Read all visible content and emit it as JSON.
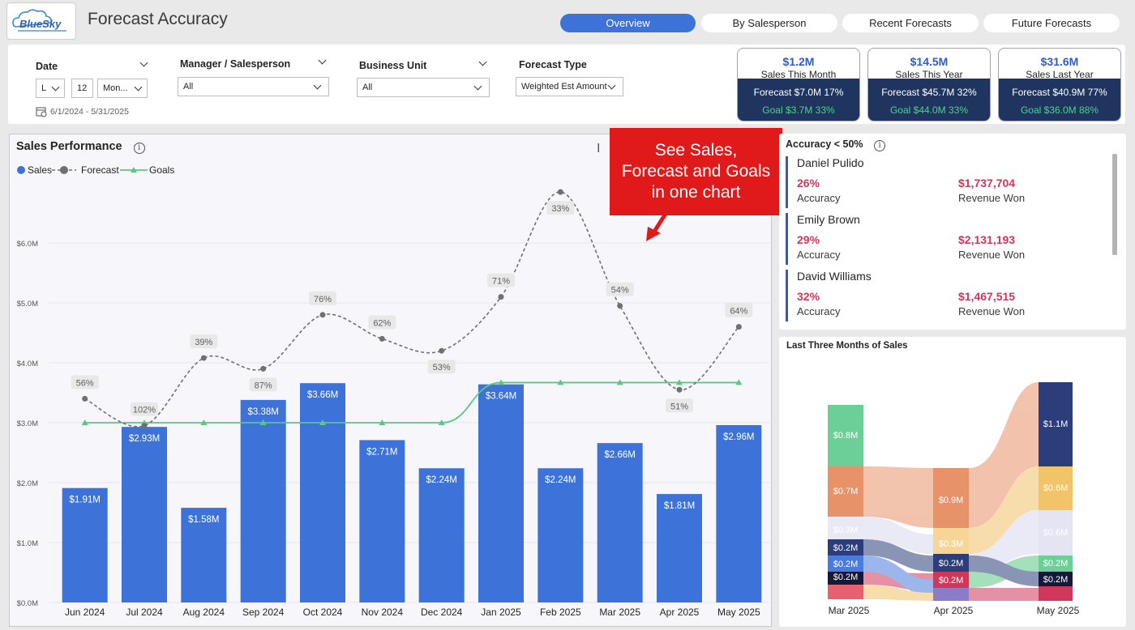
{
  "header": {
    "logo_text": "BlueSky",
    "title": "Forecast Accuracy",
    "tabs": [
      {
        "label": "Overview",
        "active": true
      },
      {
        "label": "By Salesperson",
        "active": false
      },
      {
        "label": "Recent Forecasts",
        "active": false
      },
      {
        "label": "Future Forecasts",
        "active": false
      }
    ]
  },
  "filters": {
    "date": {
      "label": "Date",
      "unit": "L",
      "count": "12",
      "period": "Mon...",
      "range": "6/1/2024 - 5/31/2025"
    },
    "manager": {
      "label": "Manager / Salesperson",
      "value": "All"
    },
    "business_unit": {
      "label": "Business Unit",
      "value": "All"
    },
    "forecast_type": {
      "label": "Forecast Type",
      "value": "Weighted Est Amount"
    }
  },
  "kpis": [
    {
      "value": "$1.2M",
      "label": "Sales This Month",
      "forecast": "Forecast $7.0M 17%",
      "goal": "Goal $3.7M 33%"
    },
    {
      "value": "$14.5M",
      "label": "Sales This Year",
      "forecast": "Forecast $45.7M 32%",
      "goal": "Goal $44.0M 33%"
    },
    {
      "value": "$31.6M",
      "label": "Sales Last Year",
      "forecast": "Forecast $40.9M 77%",
      "goal": "Goal $36.0M 88%"
    }
  ],
  "callout": {
    "line1": "See Sales,",
    "line2": "Forecast and Goals",
    "line3": "in one chart"
  },
  "chart_data": {
    "type": "bar",
    "title": "Sales Performance",
    "legend": [
      "Sales",
      "Forecast",
      "Goals"
    ],
    "categories": [
      "Jun 2024",
      "Jul 2024",
      "Aug 2024",
      "Sep 2024",
      "Oct 2024",
      "Nov 2024",
      "Dec 2024",
      "Jan 2025",
      "Feb 2025",
      "Mar 2025",
      "Apr 2025",
      "May 2025"
    ],
    "sales": [
      1.91,
      2.93,
      1.58,
      3.38,
      3.66,
      2.71,
      2.24,
      3.64,
      2.24,
      2.66,
      1.81,
      2.96
    ],
    "sales_labels": [
      "$1.91M",
      "$2.93M",
      "$1.58M",
      "$3.38M",
      "$3.66M",
      "$2.71M",
      "$2.24M",
      "$3.64M",
      "$2.24M",
      "$2.66M",
      "$1.81M",
      "$2.96M"
    ],
    "forecast": [
      3.4,
      2.95,
      4.08,
      3.9,
      4.8,
      4.4,
      4.2,
      5.1,
      6.85,
      4.95,
      3.55,
      4.6
    ],
    "accuracy_labels": [
      "56%",
      "102%",
      "39%",
      "87%",
      "76%",
      "62%",
      "53%",
      "71%",
      "33%",
      "54%",
      "51%",
      "64%"
    ],
    "goals": [
      3.0,
      3.0,
      3.0,
      3.0,
      3.0,
      3.0,
      3.0,
      3.67,
      3.67,
      3.67,
      3.67,
      3.67
    ],
    "ylim": [
      0,
      7
    ],
    "yticks": [
      "$0.0M",
      "$1.0M",
      "$2.0M",
      "$3.0M",
      "$4.0M",
      "$5.0M",
      "$6.0M"
    ],
    "colors": {
      "sales": "#3d73d9",
      "forecast": "#707070",
      "goals": "#5ac787"
    }
  },
  "accuracy": {
    "title": "Accuracy < 50%",
    "people": [
      {
        "name": "Daniel Pulido",
        "pct": "26%",
        "pct_label": "Accuracy",
        "revenue": "$1,737,704",
        "revenue_label": "Revenue Won"
      },
      {
        "name": "Emily Brown",
        "pct": "29%",
        "pct_label": "Accuracy",
        "revenue": "$2,131,193",
        "revenue_label": "Revenue Won"
      },
      {
        "name": "David Williams",
        "pct": "32%",
        "pct_label": "Accuracy",
        "revenue": "$1,467,515",
        "revenue_label": "Revenue Won"
      }
    ]
  },
  "sankey": {
    "title": "Last Three Months of Sales",
    "months": [
      "Mar 2025",
      "Apr 2025",
      "May 2025"
    ],
    "labels": {
      "mar": [
        "$0.8M",
        "$0.7M",
        "$0.3M",
        "$0.2M",
        "$0.2M",
        "$0.2M"
      ],
      "apr": [
        "$0.9M",
        "$0.3M",
        "$0.2M",
        "$0.2M"
      ],
      "may": [
        "$1.1M",
        "$0.6M",
        "$0.6M",
        "$0.2M",
        "$0.2M"
      ]
    }
  }
}
